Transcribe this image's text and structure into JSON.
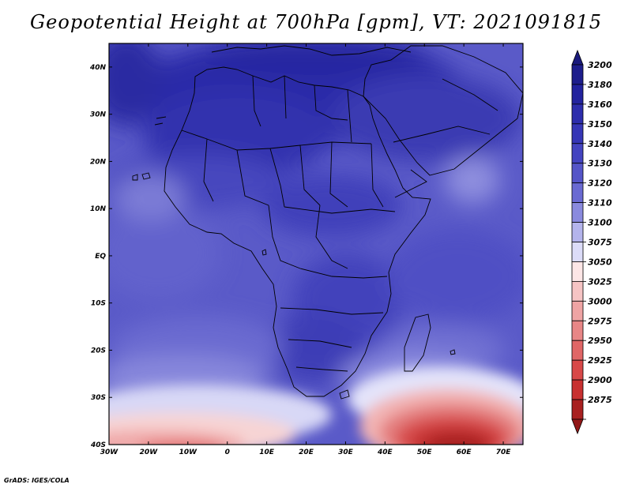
{
  "title": "Geopotential Height at 700hPa [gpm], VT: 2021091815",
  "credit": "GrADS: IGES/COLA",
  "map": {
    "lon_range": [
      -30,
      75
    ],
    "lat_range": [
      -40,
      45
    ],
    "lat_ticks": [
      {
        "value": 40,
        "label": "40N"
      },
      {
        "value": 30,
        "label": "30N"
      },
      {
        "value": 20,
        "label": "20N"
      },
      {
        "value": 10,
        "label": "10N"
      },
      {
        "value": 0,
        "label": "EQ"
      },
      {
        "value": -10,
        "label": "10S"
      },
      {
        "value": -20,
        "label": "20S"
      },
      {
        "value": -30,
        "label": "30S"
      },
      {
        "value": -40,
        "label": "40S"
      }
    ],
    "lon_ticks": [
      {
        "value": -30,
        "label": "30W"
      },
      {
        "value": -20,
        "label": "20W"
      },
      {
        "value": -10,
        "label": "10W"
      },
      {
        "value": 0,
        "label": "0"
      },
      {
        "value": 10,
        "label": "10E"
      },
      {
        "value": 20,
        "label": "20E"
      },
      {
        "value": 30,
        "label": "30E"
      },
      {
        "value": 40,
        "label": "40E"
      },
      {
        "value": 50,
        "label": "50E"
      },
      {
        "value": 60,
        "label": "60E"
      },
      {
        "value": 70,
        "label": "70E"
      }
    ]
  },
  "colorbar": {
    "levels": [
      {
        "label": "3200",
        "color": "#1e1e8c"
      },
      {
        "label": "3180",
        "color": "#23239e"
      },
      {
        "label": "3160",
        "color": "#2d2dac"
      },
      {
        "label": "3150",
        "color": "#3636b6"
      },
      {
        "label": "3140",
        "color": "#4444c0"
      },
      {
        "label": "3130",
        "color": "#5555c8"
      },
      {
        "label": "3120",
        "color": "#6a6ad2"
      },
      {
        "label": "3110",
        "color": "#8a8ade"
      },
      {
        "label": "3100",
        "color": "#b4b4ec"
      },
      {
        "label": "3075",
        "color": "#dcdcf8"
      },
      {
        "label": "3050",
        "color": "#fde6e6"
      },
      {
        "label": "3025",
        "color": "#f6c4c4"
      },
      {
        "label": "3000",
        "color": "#efa4a4"
      },
      {
        "label": "2975",
        "color": "#e88686"
      },
      {
        "label": "2950",
        "color": "#e06666"
      },
      {
        "label": "2925",
        "color": "#d84848"
      },
      {
        "label": "2900",
        "color": "#c83030"
      },
      {
        "label": "2875",
        "color": "#a82020"
      }
    ],
    "top_arrow_color": "#1a1a7c",
    "bottom_arrow_color": "#921818"
  }
}
